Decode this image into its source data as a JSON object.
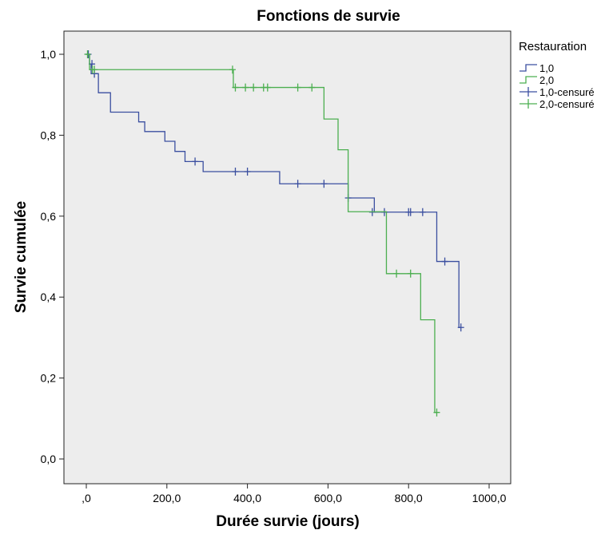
{
  "chart_data": {
    "type": "line",
    "title": "Fonctions de survie",
    "xlabel": "Durée survie (jours)",
    "ylabel": "Survie cumulée",
    "xlim": [
      0,
      1000
    ],
    "ylim": [
      0,
      1
    ],
    "x_ticks": [
      {
        "value": 0,
        "label": ",0"
      },
      {
        "value": 200,
        "label": "200,0"
      },
      {
        "value": 400,
        "label": "400,0"
      },
      {
        "value": 600,
        "label": "600,0"
      },
      {
        "value": 800,
        "label": "800,0"
      },
      {
        "value": 1000,
        "label": "1000,0"
      }
    ],
    "y_ticks": [
      {
        "value": 0,
        "label": "0,0"
      },
      {
        "value": 0.2,
        "label": "0,2"
      },
      {
        "value": 0.4,
        "label": "0,4"
      },
      {
        "value": 0.6,
        "label": "0,6"
      },
      {
        "value": 0.8,
        "label": "0,8"
      },
      {
        "value": 1.0,
        "label": "1,0"
      }
    ],
    "grid": false,
    "background": "#ededed",
    "legend": {
      "title": "Restauration",
      "placement": "right",
      "entries": [
        {
          "label": "1,0",
          "kind": "step",
          "color": "#3b4fa0"
        },
        {
          "label": "2,0",
          "kind": "step",
          "color": "#4caf50"
        },
        {
          "label": "1,0-censuré",
          "kind": "censor",
          "color": "#3b4fa0"
        },
        {
          "label": "2,0-censuré",
          "kind": "censor",
          "color": "#4caf50"
        }
      ]
    },
    "series": [
      {
        "name": "1,0",
        "color": "#3b4fa0",
        "steps": [
          [
            0,
            1.0
          ],
          [
            8,
            0.976
          ],
          [
            12,
            0.952
          ],
          [
            30,
            0.905
          ],
          [
            60,
            0.857
          ],
          [
            130,
            0.833
          ],
          [
            145,
            0.809
          ],
          [
            195,
            0.785
          ],
          [
            220,
            0.76
          ],
          [
            245,
            0.735
          ],
          [
            290,
            0.71
          ],
          [
            480,
            0.68
          ],
          [
            650,
            0.645
          ],
          [
            715,
            0.61
          ],
          [
            870,
            0.488
          ],
          [
            925,
            0.325
          ]
        ],
        "end": 930,
        "censored": [
          [
            5,
            1.0
          ],
          [
            14,
            0.976
          ],
          [
            20,
            0.952
          ],
          [
            270,
            0.735
          ],
          [
            370,
            0.71
          ],
          [
            400,
            0.71
          ],
          [
            525,
            0.68
          ],
          [
            590,
            0.68
          ],
          [
            650,
            0.645
          ],
          [
            710,
            0.61
          ],
          [
            740,
            0.61
          ],
          [
            800,
            0.61
          ],
          [
            805,
            0.61
          ],
          [
            835,
            0.61
          ],
          [
            890,
            0.488
          ],
          [
            930,
            0.325
          ]
        ]
      },
      {
        "name": "2,0",
        "color": "#4caf50",
        "steps": [
          [
            0,
            1.0
          ],
          [
            8,
            0.962
          ],
          [
            365,
            0.918
          ],
          [
            590,
            0.84
          ],
          [
            625,
            0.764
          ],
          [
            650,
            0.611
          ],
          [
            745,
            0.458
          ],
          [
            830,
            0.344
          ],
          [
            865,
            0.115
          ]
        ],
        "end": 870,
        "censored": [
          [
            3,
            1.0
          ],
          [
            15,
            0.962
          ],
          [
            20,
            0.962
          ],
          [
            363,
            0.962
          ],
          [
            370,
            0.918
          ],
          [
            395,
            0.918
          ],
          [
            415,
            0.918
          ],
          [
            440,
            0.918
          ],
          [
            450,
            0.918
          ],
          [
            525,
            0.918
          ],
          [
            560,
            0.918
          ],
          [
            770,
            0.458
          ],
          [
            805,
            0.458
          ],
          [
            870,
            0.115
          ]
        ]
      }
    ]
  }
}
